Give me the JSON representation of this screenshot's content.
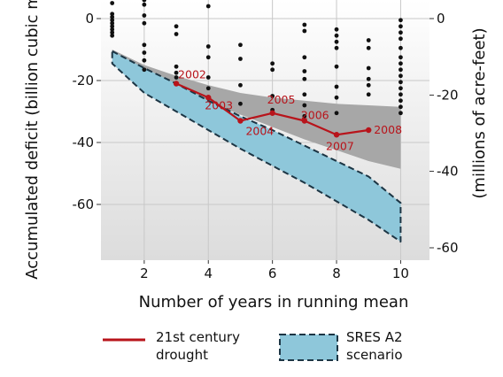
{
  "chart_data": {
    "type": "line",
    "xlabel": "Number of years in running mean",
    "ylabel": "Accumulated deficit (billion cubic meters)",
    "y2label": "(millions of acre-feet)",
    "xlim": [
      0.65,
      10.9
    ],
    "ylim": [
      -78,
      6
    ],
    "x_ticks": [
      2,
      4,
      6,
      8,
      10
    ],
    "y_ticks": [
      0,
      -20,
      -40,
      -60
    ],
    "y2_ticks": [
      {
        "label": "0",
        "value": 0
      },
      {
        "label": "-20",
        "value": -24.7
      },
      {
        "label": "-40",
        "value": -49.3
      },
      {
        "label": "-60",
        "value": -74.0
      }
    ],
    "grid": true,
    "colors": {
      "drought": "#b8141b",
      "sres_fill": "#8ec7da",
      "sres_edge": "#1c3544",
      "gray_band": "#a7a7a7",
      "dots": "#111111",
      "grid": "#c8c8c8"
    },
    "series": [
      {
        "name": "21st century drought",
        "x": [
          3,
          4,
          5,
          6,
          7,
          8,
          9
        ],
        "y": [
          -21,
          -25.5,
          -33,
          -30.5,
          -33,
          -37.5,
          -36
        ],
        "labels": [
          "2002",
          "2003",
          "2004",
          "2005",
          "2006",
          "2007",
          "2008"
        ]
      }
    ],
    "sres_band": {
      "name": "SRES A2 scenario",
      "x": [
        1,
        2,
        3,
        4,
        5,
        6,
        7,
        8,
        9,
        10
      ],
      "upper": [
        -10.5,
        -16,
        -21,
        -26.5,
        -31.5,
        -36,
        -41,
        -46,
        -51,
        -59.5
      ],
      "lower": [
        -14.5,
        -24,
        -30,
        -36,
        -42,
        -47.5,
        -53,
        -59,
        -65,
        -72
      ]
    },
    "gray_band": {
      "x": [
        1,
        2,
        3,
        4,
        5,
        6,
        7,
        8,
        9,
        10
      ],
      "upper": [
        -10,
        -15,
        -18.5,
        -21.5,
        -24,
        -25.5,
        -26.5,
        -27.5,
        -28,
        -28.5
      ],
      "lower": [
        -11,
        -17,
        -22.5,
        -27,
        -31,
        -35,
        -39,
        -42.5,
        -46,
        -48.5
      ]
    },
    "scatter": [
      {
        "x": 1,
        "y": [
          5,
          1.5,
          0.5,
          -0.5,
          -1.5,
          -2.5,
          -3.5,
          -4.5,
          -5.5
        ]
      },
      {
        "x": 2,
        "y": [
          6,
          4.5,
          1,
          -1.5,
          -8.5,
          -11,
          -13.5,
          -16.5
        ]
      },
      {
        "x": 3,
        "y": [
          -2.5,
          -5,
          -15.5,
          -17.5,
          -19
        ]
      },
      {
        "x": 4,
        "y": [
          4,
          -9,
          -12.5,
          -19,
          -22.5
        ]
      },
      {
        "x": 5,
        "y": [
          -8.5,
          -13,
          -21.5,
          -27.5
        ]
      },
      {
        "x": 6,
        "y": [
          -14.5,
          -16.5,
          -25,
          -29.5
        ]
      },
      {
        "x": 7,
        "y": [
          -2,
          -4,
          -12.5,
          -17,
          -19.5,
          -24.5,
          -28,
          -31.5
        ]
      },
      {
        "x": 8,
        "y": [
          -3.5,
          -5.5,
          -7.5,
          -9.5,
          -15.5,
          -22,
          -25.5,
          -30.5
        ]
      },
      {
        "x": 9,
        "y": [
          -7,
          -9.5,
          -16,
          -19.5,
          -21.5,
          -24.5
        ]
      },
      {
        "x": 10,
        "y": [
          -0.5,
          -2.5,
          -4.5,
          -6.5,
          -9.5,
          -12.5,
          -14.5,
          -16.5,
          -18.5,
          -20.5,
          -22.5,
          -24.5,
          -26.5,
          -28.5,
          -30.5
        ]
      }
    ],
    "legend": {
      "placement": "bottom",
      "items": [
        {
          "line1": "21st century",
          "line2": "drought"
        },
        {
          "line1": "SRES A2",
          "line2": "scenario"
        }
      ]
    }
  }
}
